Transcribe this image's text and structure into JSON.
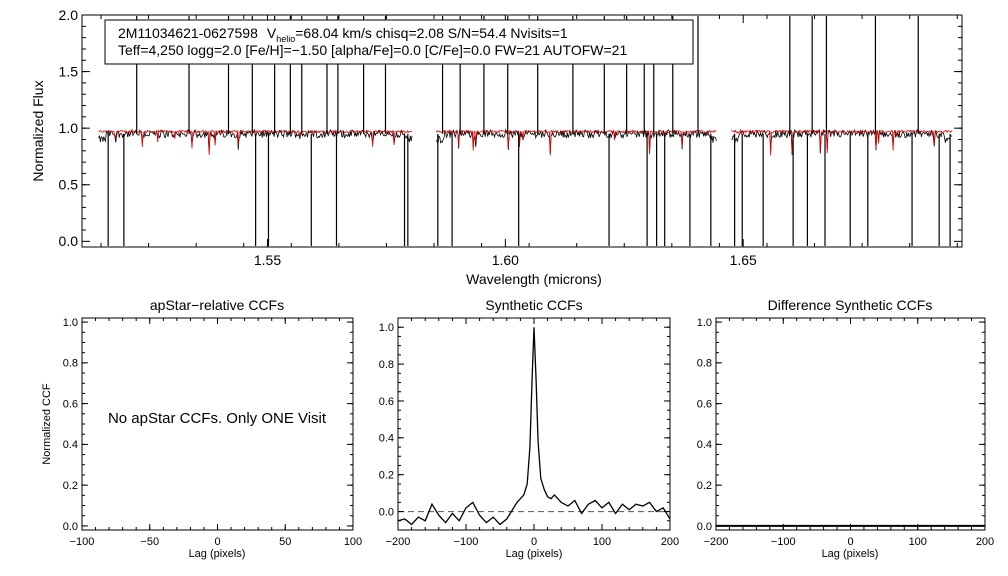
{
  "spectrum": {
    "id_text": "2M11034621-0627598",
    "vhelio_label": "V",
    "vhelio_sub": "helio",
    "vhelio_rest": "=68.04 km/s  chisq=2.08  S/N=54.4  Nvisits=1",
    "params_line": "Teff=4,250 logg=2.0 [Fe/H]=−1.50 [alpha/Fe]=0.0 [C/Fe]=0.0 FW=21 AUTOFW=21",
    "xlabel": "Wavelength (microns)",
    "ylabel": "Normalized Flux"
  },
  "panels": {
    "apstar": {
      "title": "apStar−relative CCFs",
      "message": "No apStar CCFs.  Only ONE Visit",
      "xlabel": "Lag (pixels)",
      "ylabel": "Normalized CCF"
    },
    "synthetic": {
      "title": "Synthetic CCFs",
      "xlabel": "Lag (pixels)"
    },
    "difference": {
      "title": "Difference Synthetic CCFs",
      "xlabel": "Lag (pixels)"
    }
  },
  "chart_data": [
    {
      "type": "line",
      "name": "spectrum",
      "xlim": [
        1.511,
        1.696
      ],
      "ylim": [
        -0.05,
        2.0
      ],
      "xticks": [
        1.55,
        1.6,
        1.65
      ],
      "xtick_labels": [
        "1.55",
        "1.60",
        "1.65"
      ],
      "yticks": [
        0.0,
        0.5,
        1.0,
        1.5,
        2.0
      ],
      "ytick_labels": [
        "0.0",
        "0.5",
        "1.0",
        "1.5",
        "2.0"
      ],
      "chips": [
        [
          1.5145,
          1.5805
        ],
        [
          1.5855,
          1.6445
        ],
        [
          1.6475,
          1.694
        ]
      ],
      "series": [
        {
          "name": "observed",
          "color": "#000000",
          "baseline": 0.95
        },
        {
          "name": "model",
          "color": "#e00000",
          "baseline": 0.97
        }
      ],
      "upward_spikes": [
        1.5225,
        1.5335,
        1.5418,
        1.5468,
        1.5515,
        1.5548,
        1.5572,
        1.5625,
        1.5648,
        1.5702,
        1.5748,
        1.5868,
        1.5905,
        1.5955,
        1.6005,
        1.6068,
        1.6142,
        1.6208,
        1.6255,
        1.6292,
        1.6312,
        1.6352,
        1.6405,
        1.6598,
        1.6645,
        1.6675,
        1.6778,
        1.6868
      ],
      "downward_spikes": [
        1.5165,
        1.5198,
        1.5475,
        1.5502,
        1.5592,
        1.5645,
        1.5788,
        1.5795,
        1.5858,
        1.5888,
        1.6028,
        1.6218,
        1.6298,
        1.6318,
        1.6335,
        1.6388,
        1.6432,
        1.6482,
        1.6498,
        1.6542,
        1.6605,
        1.6635,
        1.6672,
        1.6725,
        1.6762,
        1.6855,
        1.6912,
        1.6935
      ]
    },
    {
      "type": "line",
      "name": "apStar-relative CCFs",
      "xlim": [
        -100,
        100
      ],
      "ylim": [
        -0.02,
        1.02
      ],
      "xticks": [
        -100,
        -50,
        0,
        50,
        100
      ],
      "xtick_labels": [
        "−100",
        "−50",
        "0",
        "50",
        "100"
      ],
      "yticks": [
        0.0,
        0.2,
        0.4,
        0.6,
        0.8,
        1.0
      ],
      "ytick_labels": [
        "0.0",
        "0.2",
        "0.4",
        "0.6",
        "0.8",
        "1.0"
      ],
      "series": []
    },
    {
      "type": "line",
      "name": "Synthetic CCFs",
      "xlim": [
        -200,
        200
      ],
      "ylim": [
        -0.1,
        1.05
      ],
      "xticks": [
        -200,
        -100,
        0,
        100,
        200
      ],
      "xtick_labels": [
        "−200",
        "−100",
        "0",
        "100",
        "200"
      ],
      "yticks": [
        0.0,
        0.2,
        0.4,
        0.6,
        0.8,
        1.0
      ],
      "ytick_labels": [
        "0.0",
        "0.2",
        "0.4",
        "0.6",
        "0.8",
        "1.0"
      ],
      "zero_line": 0.0,
      "series": [
        {
          "name": "ccf",
          "x": [
            -200,
            -190,
            -180,
            -170,
            -160,
            -150,
            -140,
            -130,
            -120,
            -110,
            -100,
            -90,
            -80,
            -70,
            -60,
            -50,
            -40,
            -30,
            -25,
            -20,
            -15,
            -10,
            -6,
            -3,
            0,
            3,
            6,
            10,
            15,
            20,
            25,
            30,
            40,
            50,
            60,
            70,
            80,
            90,
            100,
            110,
            120,
            130,
            140,
            150,
            160,
            170,
            180,
            190,
            200
          ],
          "y": [
            -0.05,
            -0.04,
            -0.07,
            -0.03,
            -0.05,
            0.04,
            -0.02,
            -0.06,
            -0.01,
            -0.05,
            0.02,
            0.05,
            -0.02,
            -0.06,
            -0.03,
            -0.07,
            -0.04,
            0.02,
            0.05,
            0.07,
            0.09,
            0.15,
            0.35,
            0.7,
            1.0,
            0.72,
            0.38,
            0.18,
            0.12,
            0.08,
            0.07,
            0.09,
            0.05,
            0.03,
            0.06,
            -0.01,
            0.04,
            0.06,
            0.02,
            0.05,
            -0.01,
            0.04,
            0.01,
            0.04,
            0.03,
            0.05,
            0.0,
            0.02,
            -0.04
          ]
        }
      ]
    },
    {
      "type": "line",
      "name": "Difference Synthetic CCFs",
      "xlim": [
        -200,
        200
      ],
      "ylim": [
        -0.02,
        1.02
      ],
      "xticks": [
        -200,
        -100,
        0,
        100,
        200
      ],
      "xtick_labels": [
        "−200",
        "−100",
        "0",
        "100",
        "200"
      ],
      "yticks": [
        0.0,
        0.2,
        0.4,
        0.6,
        0.8,
        1.0
      ],
      "ytick_labels": [
        "0.0",
        "0.2",
        "0.4",
        "0.6",
        "0.8",
        "1.0"
      ],
      "series": [
        {
          "name": "difference",
          "x": [
            -200,
            200
          ],
          "y": [
            0.0,
            0.0
          ]
        }
      ]
    }
  ]
}
